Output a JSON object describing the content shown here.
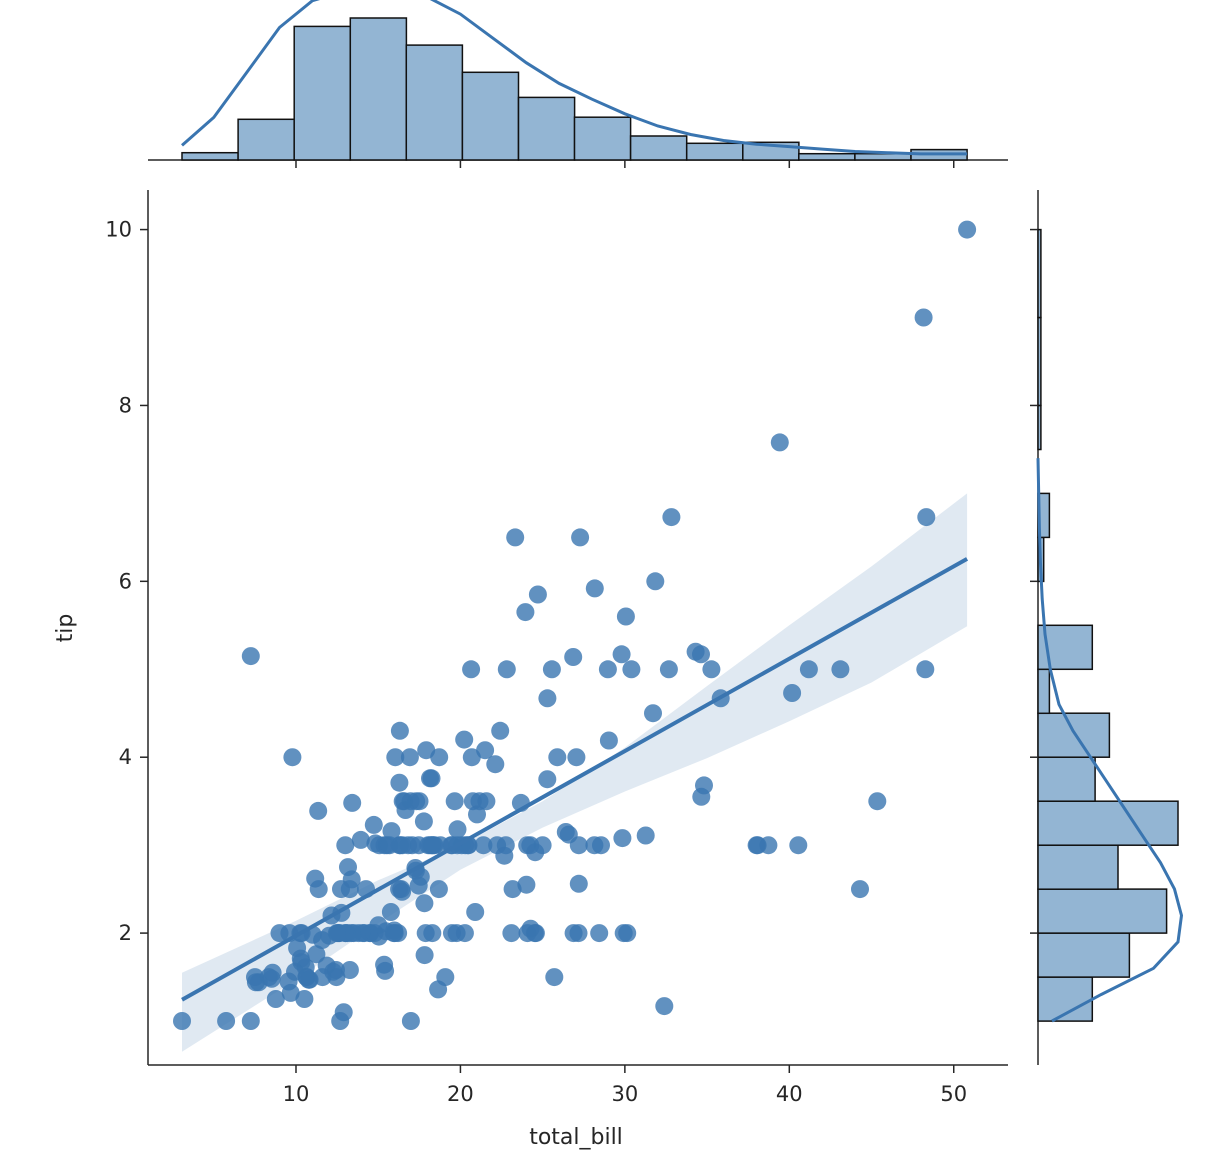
{
  "chart_data": {
    "type": "jointplot",
    "kind": "reg",
    "xlabel": "total_bill",
    "ylabel": "tip",
    "xlim": [
      1.0,
      53.3
    ],
    "ylim": [
      0.5,
      10.45
    ],
    "xticks": [
      10,
      20,
      30,
      40,
      50
    ],
    "yticks": [
      2,
      4,
      6,
      8,
      10
    ],
    "color": "#3a75b0",
    "hist_face_color": "#93b5d3",
    "band_color": "#dde7f1",
    "regression": {
      "intercept": 0.92,
      "slope": 0.105,
      "x_range": [
        3.07,
        50.81
      ]
    },
    "ci_band": {
      "x": [
        3.07,
        10,
        15,
        20,
        25,
        30,
        35,
        40,
        45,
        50.81
      ],
      "lower": [
        0.65,
        1.47,
        2.11,
        2.72,
        3.2,
        3.61,
        3.99,
        4.41,
        4.85,
        5.49
      ],
      "upper": [
        1.55,
        2.14,
        2.6,
        3.0,
        3.5,
        4.11,
        4.81,
        5.5,
        6.17,
        7.0
      ]
    },
    "points": {
      "x": [
        3.07,
        5.75,
        7.25,
        7.25,
        7.74,
        7.51,
        7.56,
        8.35,
        8.52,
        8.77,
        8.58,
        9.55,
        9.6,
        9.68,
        9.78,
        9.94,
        10.07,
        10.27,
        10.33,
        10.34,
        10.29,
        10.51,
        10.59,
        10.63,
        10.65,
        10.77,
        10.83,
        11.02,
        11.17,
        11.24,
        11.35,
        11.38,
        11.59,
        11.61,
        11.87,
        12.02,
        12.16,
        12.26,
        12.43,
        12.46,
        12.54,
        12.6,
        12.66,
        12.69,
        12.74,
        12.76,
        12.9,
        13.0,
        13.03,
        13.13,
        13.16,
        13.27,
        13.28,
        13.37,
        13.39,
        13.42,
        13.51,
        13.81,
        13.94,
        14.07,
        14.15,
        14.26,
        14.48,
        14.52,
        14.73,
        14.78,
        14.83,
        15.01,
        15.04,
        15.06,
        15.36,
        15.38,
        15.42,
        15.48,
        15.53,
        15.69,
        15.77,
        15.81,
        15.95,
        15.98,
        16.0,
        16.04,
        16.21,
        16.27,
        16.29,
        16.31,
        16.32,
        16.4,
        16.45,
        16.47,
        16.49,
        16.58,
        16.66,
        16.82,
        16.93,
        16.97,
        16.99,
        17.07,
        17.26,
        17.29,
        17.31,
        17.46,
        17.47,
        17.51,
        17.59,
        17.78,
        17.81,
        17.82,
        17.89,
        17.92,
        18.04,
        18.15,
        18.24,
        18.26,
        18.28,
        18.29,
        18.35,
        18.43,
        18.64,
        18.69,
        18.71,
        18.78,
        19.08,
        19.44,
        19.49,
        19.65,
        19.77,
        19.81,
        19.82,
        20.08,
        20.23,
        20.27,
        20.29,
        20.45,
        20.49,
        20.65,
        20.69,
        20.76,
        20.9,
        21.01,
        21.16,
        21.5,
        21.58,
        22.12,
        22.23,
        22.42,
        22.67,
        22.76,
        22.82,
        23.1,
        23.17,
        23.33,
        23.68,
        23.95,
        24.01,
        24.06,
        24.08,
        24.27,
        24.52,
        24.55,
        24.59,
        24.71,
        25.0,
        25.28,
        25.29,
        25.56,
        25.71,
        25.89,
        26.41,
        26.59,
        26.86,
        26.88,
        27.05,
        27.18,
        27.2,
        27.28,
        28.15,
        28.17,
        28.44,
        28.55,
        28.97,
        29.03,
        29.8,
        29.85,
        29.93,
        30.06,
        30.14,
        30.4,
        31.27,
        31.71,
        31.85,
        32.4,
        32.68,
        32.83,
        34.3,
        34.63,
        34.65,
        34.81,
        35.26,
        35.83,
        38.01,
        38.07,
        38.73,
        39.42,
        40.17,
        40.55,
        41.19,
        43.11,
        44.3,
        45.35,
        48.17,
        48.27,
        48.33,
        50.81,
        24.25,
        16.32,
        18.15,
        13.0,
        27.2,
        12.48,
        9.0,
        19.5,
        21.4
      ],
      "y": [
        1.0,
        1.0,
        1.0,
        5.15,
        1.44,
        1.5,
        1.44,
        1.5,
        1.48,
        1.25,
        1.55,
        1.45,
        2.0,
        1.32,
        4.0,
        1.56,
        1.83,
        2.0,
        1.67,
        2.0,
        1.71,
        1.25,
        1.61,
        1.5,
        1.5,
        1.47,
        1.47,
        1.98,
        2.62,
        1.76,
        3.39,
        2.5,
        1.92,
        1.5,
        1.63,
        1.97,
        2.2,
        1.56,
        1.58,
        1.5,
        2.0,
        2.0,
        2.0,
        1.0,
        2.5,
        2.23,
        1.1,
        2.0,
        2.0,
        2.0,
        2.75,
        2.5,
        1.58,
        2.0,
        2.61,
        3.48,
        2.0,
        2.0,
        3.06,
        2.0,
        2.0,
        2.5,
        2.0,
        2.0,
        3.23,
        2.0,
        3.02,
        2.09,
        1.96,
        3.0,
        1.64,
        3.0,
        1.57,
        2.02,
        3.0,
        3.0,
        2.24,
        3.16,
        2.0,
        2.03,
        2.0,
        4.0,
        2.0,
        2.5,
        3.71,
        3.0,
        4.3,
        2.5,
        2.47,
        3.0,
        3.5,
        3.5,
        3.4,
        3.0,
        4.0,
        3.5,
        1.0,
        3.0,
        2.74,
        2.71,
        3.5,
        2.54,
        3.0,
        3.5,
        2.64,
        3.27,
        2.34,
        1.75,
        2.0,
        4.08,
        3.0,
        3.76,
        3.76,
        3.0,
        3.0,
        2.0,
        3.0,
        3.0,
        1.36,
        2.5,
        4.0,
        3.0,
        1.5,
        3.0,
        2.0,
        3.5,
        2.0,
        3.0,
        3.18,
        3.0,
        4.2,
        2.0,
        3.0,
        3.0,
        3.0,
        5.0,
        4.0,
        3.5,
        2.24,
        3.35,
        3.5,
        4.08,
        3.5,
        3.92,
        3.0,
        4.3,
        2.88,
        3.0,
        5.0,
        2.0,
        2.5,
        6.5,
        3.48,
        5.65,
        2.55,
        3.0,
        2.0,
        2.05,
        2.0,
        2.92,
        2.0,
        5.85,
        3.0,
        3.75,
        4.67,
        5.0,
        1.5,
        4.0,
        3.15,
        3.12,
        5.14,
        2.0,
        4.0,
        2.0,
        2.56,
        6.5,
        3.0,
        5.92,
        2.0,
        3.0,
        5.0,
        4.19,
        5.17,
        3.08,
        2.0,
        5.6,
        2.0,
        5.0,
        3.11,
        4.5,
        6.0,
        1.17,
        5.0,
        6.73,
        5.2,
        5.17,
        3.55,
        3.68,
        5.0,
        4.67,
        3.0,
        3.0,
        3.0,
        7.58,
        4.73,
        3.0,
        5.0,
        5.0,
        2.5,
        3.5,
        9.0,
        5.0,
        6.73,
        10.0,
        3.0,
        3.0,
        3.0,
        3.0,
        3.0,
        2.0,
        2.0,
        3.0,
        3.0
      ]
    },
    "top_hist": {
      "edges": [
        3.07,
        6.48,
        9.89,
        13.3,
        16.71,
        20.12,
        23.53,
        26.94,
        30.35,
        33.76,
        37.17,
        40.58,
        43.99,
        47.4,
        50.81
      ],
      "counts": [
        7,
        39,
        128,
        136,
        110,
        84,
        60,
        41,
        23,
        16,
        17,
        6,
        6,
        10
      ]
    },
    "right_hist": {
      "edges": [
        1.0,
        1.5,
        2.0,
        2.5,
        3.0,
        3.5,
        4.0,
        4.5,
        5.0,
        5.5,
        6.0,
        6.5,
        7.0,
        7.5,
        8.0,
        9.0,
        10.0
      ],
      "counts": [
        19,
        32,
        45,
        28,
        49,
        20,
        25,
        4,
        19,
        0,
        2,
        4,
        0,
        1,
        1,
        1
      ]
    },
    "top_kde": {
      "x": [
        3.07,
        5,
        7,
        9,
        11,
        13,
        15,
        16.5,
        18,
        20,
        22,
        24,
        26,
        28,
        30,
        32,
        34,
        36,
        38,
        40,
        42,
        44,
        46,
        48,
        50.81
      ],
      "d": [
        0.012,
        0.035,
        0.072,
        0.109,
        0.131,
        0.139,
        0.141,
        0.14,
        0.134,
        0.12,
        0.1,
        0.08,
        0.063,
        0.05,
        0.038,
        0.028,
        0.021,
        0.016,
        0.013,
        0.011,
        0.009,
        0.007,
        0.006,
        0.005,
        0.005
      ]
    },
    "right_kde": {
      "y": [
        1.0,
        1.3,
        1.6,
        1.9,
        2.2,
        2.5,
        2.8,
        3.1,
        3.4,
        3.7,
        4.0,
        4.3,
        4.6,
        5.0,
        5.4,
        5.8,
        6.2,
        6.6,
        7.0,
        7.4
      ],
      "d": [
        0.04,
        0.18,
        0.33,
        0.4,
        0.41,
        0.39,
        0.35,
        0.3,
        0.25,
        0.2,
        0.15,
        0.1,
        0.06,
        0.035,
        0.02,
        0.012,
        0.007,
        0.004,
        0.002,
        0.0
      ]
    }
  }
}
